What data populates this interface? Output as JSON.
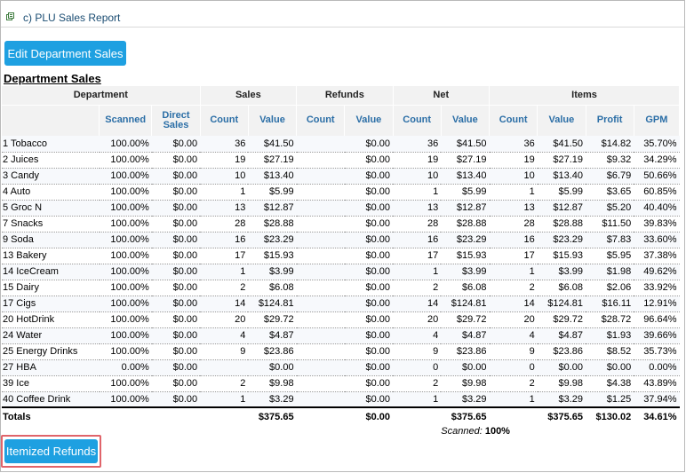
{
  "header": {
    "title": "c) PLU Sales Report"
  },
  "buttons": {
    "edit_department": "Edit Department Sales",
    "itemized_refunds": "Itemized Refunds"
  },
  "section": {
    "title": "Department Sales"
  },
  "table": {
    "group_headers": [
      "Department",
      "Sales",
      "Refunds",
      "Net",
      "Items"
    ],
    "columns": [
      "",
      "Scanned",
      "Direct Sales",
      "Count",
      "Value",
      "Count",
      "Value",
      "Count",
      "Value",
      "Count",
      "Value",
      "Profit",
      "GPM"
    ],
    "rows": [
      [
        "1 Tobacco",
        "100.00%",
        "$0.00",
        "36",
        "$41.50",
        "",
        "$0.00",
        "36",
        "$41.50",
        "36",
        "$41.50",
        "$14.82",
        "35.70%"
      ],
      [
        "2 Juices",
        "100.00%",
        "$0.00",
        "19",
        "$27.19",
        "",
        "$0.00",
        "19",
        "$27.19",
        "19",
        "$27.19",
        "$9.32",
        "34.29%"
      ],
      [
        "3 Candy",
        "100.00%",
        "$0.00",
        "10",
        "$13.40",
        "",
        "$0.00",
        "10",
        "$13.40",
        "10",
        "$13.40",
        "$6.79",
        "50.66%"
      ],
      [
        "4 Auto",
        "100.00%",
        "$0.00",
        "1",
        "$5.99",
        "",
        "$0.00",
        "1",
        "$5.99",
        "1",
        "$5.99",
        "$3.65",
        "60.85%"
      ],
      [
        "5 Groc N",
        "100.00%",
        "$0.00",
        "13",
        "$12.87",
        "",
        "$0.00",
        "13",
        "$12.87",
        "13",
        "$12.87",
        "$5.20",
        "40.40%"
      ],
      [
        "7 Snacks",
        "100.00%",
        "$0.00",
        "28",
        "$28.88",
        "",
        "$0.00",
        "28",
        "$28.88",
        "28",
        "$28.88",
        "$11.50",
        "39.83%"
      ],
      [
        "9 Soda",
        "100.00%",
        "$0.00",
        "16",
        "$23.29",
        "",
        "$0.00",
        "16",
        "$23.29",
        "16",
        "$23.29",
        "$7.83",
        "33.60%"
      ],
      [
        "13 Bakery",
        "100.00%",
        "$0.00",
        "17",
        "$15.93",
        "",
        "$0.00",
        "17",
        "$15.93",
        "17",
        "$15.93",
        "$5.95",
        "37.38%"
      ],
      [
        "14 IceCream",
        "100.00%",
        "$0.00",
        "1",
        "$3.99",
        "",
        "$0.00",
        "1",
        "$3.99",
        "1",
        "$3.99",
        "$1.98",
        "49.62%"
      ],
      [
        "15 Dairy",
        "100.00%",
        "$0.00",
        "2",
        "$6.08",
        "",
        "$0.00",
        "2",
        "$6.08",
        "2",
        "$6.08",
        "$2.06",
        "33.92%"
      ],
      [
        "17 Cigs",
        "100.00%",
        "$0.00",
        "14",
        "$124.81",
        "",
        "$0.00",
        "14",
        "$124.81",
        "14",
        "$124.81",
        "$16.11",
        "12.91%"
      ],
      [
        "20 HotDrink",
        "100.00%",
        "$0.00",
        "20",
        "$29.72",
        "",
        "$0.00",
        "20",
        "$29.72",
        "20",
        "$29.72",
        "$28.72",
        "96.64%"
      ],
      [
        "24 Water",
        "100.00%",
        "$0.00",
        "4",
        "$4.87",
        "",
        "$0.00",
        "4",
        "$4.87",
        "4",
        "$4.87",
        "$1.93",
        "39.66%"
      ],
      [
        "25 Energy Drinks",
        "100.00%",
        "$0.00",
        "9",
        "$23.86",
        "",
        "$0.00",
        "9",
        "$23.86",
        "9",
        "$23.86",
        "$8.52",
        "35.73%"
      ],
      [
        "27 HBA",
        "0.00%",
        "$0.00",
        "",
        "$0.00",
        "",
        "$0.00",
        "0",
        "$0.00",
        "0",
        "$0.00",
        "$0.00",
        "0.00%"
      ],
      [
        "39 Ice",
        "100.00%",
        "$0.00",
        "2",
        "$9.98",
        "",
        "$0.00",
        "2",
        "$9.98",
        "2",
        "$9.98",
        "$4.38",
        "43.89%"
      ],
      [
        "40 Coffee Drink",
        "100.00%",
        "$0.00",
        "1",
        "$3.29",
        "",
        "$0.00",
        "1",
        "$3.29",
        "1",
        "$3.29",
        "$1.25",
        "37.94%"
      ]
    ],
    "totals": [
      "Totals",
      "",
      "",
      "",
      "$375.65",
      "",
      "$0.00",
      "",
      "$375.65",
      "",
      "$375.65",
      "$130.02",
      "34.61%"
    ],
    "scanned_label": "Scanned:",
    "scanned_value": "100%"
  }
}
